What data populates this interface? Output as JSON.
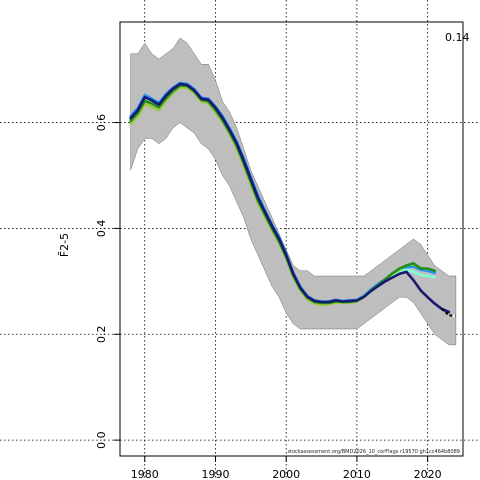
{
  "chart_data": {
    "type": "line",
    "title": "",
    "xlabel": "",
    "ylabel": "F̄2-5",
    "xlim": [
      1976.5,
      2025
    ],
    "ylim": [
      -0.03,
      0.79
    ],
    "xticks": [
      1980,
      1990,
      2000,
      2010,
      2020
    ],
    "yticks": [
      0.0,
      0.2,
      0.4,
      0.6
    ],
    "ytick_labels": [
      "0.0",
      "0.2",
      "0.4",
      "0.6"
    ],
    "grid": true,
    "corner_label": "0.14",
    "footnote": "stockassessment.org/BMD2026_10_corFlags r19570 gh1cc464b8089",
    "confidence_band": {
      "x": [
        1978,
        1979,
        1980,
        1981,
        1982,
        1983,
        1984,
        1985,
        1986,
        1987,
        1988,
        1989,
        1990,
        1991,
        1992,
        1993,
        1994,
        1995,
        1996,
        1997,
        1998,
        1999,
        2000,
        2001,
        2002,
        2003,
        2004,
        2005,
        2006,
        2007,
        2008,
        2009,
        2010,
        2011,
        2012,
        2013,
        2014,
        2015,
        2016,
        2017,
        2018,
        2019,
        2020,
        2021,
        2022,
        2023,
        2024
      ],
      "upper": [
        0.73,
        0.73,
        0.75,
        0.73,
        0.72,
        0.73,
        0.74,
        0.76,
        0.75,
        0.73,
        0.71,
        0.71,
        0.68,
        0.64,
        0.62,
        0.59,
        0.55,
        0.51,
        0.48,
        0.45,
        0.42,
        0.39,
        0.36,
        0.33,
        0.32,
        0.32,
        0.31,
        0.31,
        0.31,
        0.31,
        0.31,
        0.31,
        0.31,
        0.31,
        0.32,
        0.33,
        0.34,
        0.35,
        0.36,
        0.37,
        0.38,
        0.37,
        0.35,
        0.33,
        0.32,
        0.31,
        0.31
      ],
      "lower": [
        0.51,
        0.55,
        0.57,
        0.57,
        0.56,
        0.57,
        0.59,
        0.6,
        0.59,
        0.58,
        0.56,
        0.55,
        0.53,
        0.5,
        0.48,
        0.45,
        0.42,
        0.38,
        0.35,
        0.32,
        0.29,
        0.27,
        0.24,
        0.22,
        0.21,
        0.21,
        0.21,
        0.21,
        0.21,
        0.21,
        0.21,
        0.21,
        0.21,
        0.22,
        0.23,
        0.24,
        0.25,
        0.26,
        0.27,
        0.27,
        0.26,
        0.24,
        0.22,
        0.2,
        0.19,
        0.18,
        0.18
      ]
    },
    "series": [
      {
        "color": "#1E90FF",
        "x": [
          1978,
          1979,
          1980,
          1981,
          1982,
          1983,
          1984,
          1985,
          1986,
          1987,
          1988,
          1989,
          1990,
          1991,
          1992,
          1993,
          1994,
          1995,
          1996,
          1997,
          1998,
          1999,
          2000,
          2001,
          2002,
          2003,
          2004,
          2005,
          2006,
          2007,
          2008,
          2009,
          2010,
          2011,
          2012,
          2013,
          2014,
          2015,
          2016,
          2017,
          2018,
          2019,
          2020,
          2021
        ],
        "y": [
          0.612,
          0.627,
          0.652,
          0.645,
          0.637,
          0.654,
          0.666,
          0.675,
          0.673,
          0.663,
          0.647,
          0.645,
          0.63,
          0.612,
          0.589,
          0.564,
          0.532,
          0.497,
          0.462,
          0.434,
          0.407,
          0.383,
          0.352,
          0.316,
          0.29,
          0.272,
          0.264,
          0.262,
          0.262,
          0.265,
          0.263,
          0.264,
          0.265,
          0.273,
          0.285,
          0.295,
          0.304,
          0.312,
          0.32,
          0.327,
          0.328,
          0.322,
          0.32,
          0.316
        ]
      },
      {
        "color": "#7FFFD4",
        "x": [
          1978,
          1979,
          1980,
          1981,
          1982,
          1983,
          1984,
          1985,
          1986,
          1987,
          1988,
          1989,
          1990,
          1991,
          1992,
          1993,
          1994,
          1995,
          1996,
          1997,
          1998,
          1999,
          2000,
          2001,
          2002,
          2003,
          2004,
          2005,
          2006,
          2007,
          2008,
          2009,
          2010,
          2011,
          2012,
          2013,
          2014,
          2015,
          2016,
          2017,
          2018,
          2019,
          2020,
          2021
        ],
        "y": [
          0.605,
          0.62,
          0.643,
          0.638,
          0.631,
          0.648,
          0.661,
          0.671,
          0.67,
          0.66,
          0.644,
          0.641,
          0.626,
          0.607,
          0.584,
          0.558,
          0.525,
          0.49,
          0.455,
          0.428,
          0.401,
          0.378,
          0.348,
          0.313,
          0.287,
          0.27,
          0.262,
          0.26,
          0.26,
          0.263,
          0.262,
          0.262,
          0.264,
          0.272,
          0.283,
          0.292,
          0.302,
          0.311,
          0.318,
          0.322,
          0.318,
          0.312,
          0.31,
          0.308
        ]
      },
      {
        "color": "#9ACD32",
        "x": [
          1978,
          1979,
          1980,
          1981,
          1982,
          1983,
          1984,
          1985,
          1986,
          1987,
          1988,
          1989,
          1990,
          1991,
          1992,
          1993,
          1994,
          1995,
          1996,
          1997,
          1998,
          1999,
          2000,
          2001,
          2002,
          2003,
          2004,
          2005,
          2006,
          2007,
          2008,
          2009,
          2010,
          2011,
          2012,
          2013,
          2014,
          2015,
          2016,
          2017,
          2018,
          2019,
          2020
        ],
        "y": [
          0.598,
          0.612,
          0.635,
          0.63,
          0.624,
          0.641,
          0.656,
          0.667,
          0.666,
          0.656,
          0.64,
          0.637,
          0.62,
          0.601,
          0.578,
          0.552,
          0.519,
          0.484,
          0.449,
          0.422,
          0.396,
          0.373,
          0.343,
          0.308,
          0.283,
          0.266,
          0.258,
          0.256,
          0.257,
          0.26,
          0.259,
          0.26,
          0.262,
          0.27,
          0.282,
          0.292,
          0.303,
          0.314,
          0.322,
          0.33,
          0.332,
          0.326,
          0.323
        ]
      },
      {
        "color": "#228B22",
        "x": [
          1978,
          1979,
          1980,
          1981,
          1982,
          1983,
          1984,
          1985,
          1986,
          1987,
          1988,
          1989,
          1990,
          1991,
          1992,
          1993,
          1994,
          1995,
          1996,
          1997,
          1998,
          1999,
          2000,
          2001,
          2002,
          2003,
          2004,
          2005,
          2006,
          2007,
          2008,
          2009,
          2010,
          2011,
          2012,
          2013,
          2014,
          2015,
          2016,
          2017,
          2018,
          2019,
          2020,
          2021
        ],
        "y": [
          0.603,
          0.618,
          0.641,
          0.636,
          0.629,
          0.646,
          0.66,
          0.67,
          0.669,
          0.659,
          0.643,
          0.64,
          0.624,
          0.605,
          0.582,
          0.556,
          0.523,
          0.488,
          0.453,
          0.426,
          0.4,
          0.376,
          0.346,
          0.311,
          0.286,
          0.269,
          0.261,
          0.259,
          0.259,
          0.262,
          0.261,
          0.261,
          0.263,
          0.271,
          0.283,
          0.293,
          0.304,
          0.315,
          0.324,
          0.33,
          0.334,
          0.324,
          0.324,
          0.32
        ]
      },
      {
        "color": "#191970",
        "x": [
          1978,
          1979,
          1980,
          1981,
          1982,
          1983,
          1984,
          1985,
          1986,
          1987,
          1988,
          1989,
          1990,
          1991,
          1992,
          1993,
          1994,
          1995,
          1996,
          1997,
          1998,
          1999,
          2000,
          2001,
          2002,
          2003,
          2004,
          2005,
          2006,
          2007,
          2008,
          2009,
          2010,
          2011,
          2012,
          2013,
          2014,
          2015,
          2016,
          2017,
          2018,
          2019,
          2020,
          2021,
          2022,
          2023
        ],
        "y": [
          0.608,
          0.623,
          0.648,
          0.642,
          0.634,
          0.651,
          0.664,
          0.673,
          0.671,
          0.661,
          0.645,
          0.643,
          0.628,
          0.609,
          0.586,
          0.561,
          0.528,
          0.493,
          0.458,
          0.431,
          0.404,
          0.38,
          0.35,
          0.314,
          0.288,
          0.271,
          0.263,
          0.261,
          0.261,
          0.264,
          0.262,
          0.263,
          0.264,
          0.271,
          0.282,
          0.291,
          0.3,
          0.307,
          0.314,
          0.318,
          0.302,
          0.283,
          0.27,
          0.258,
          0.248,
          0.242
        ]
      },
      {
        "color": "#000000",
        "x": [
          2022,
          2023,
          2024
        ],
        "y": [
          0.248,
          0.236,
          0.234
        ],
        "dash": true
      },
      {
        "color": "#FFFFFF",
        "x": [
          2023.5,
          2024
        ],
        "y": [
          0.235,
          0.234
        ],
        "dash": true
      }
    ]
  }
}
